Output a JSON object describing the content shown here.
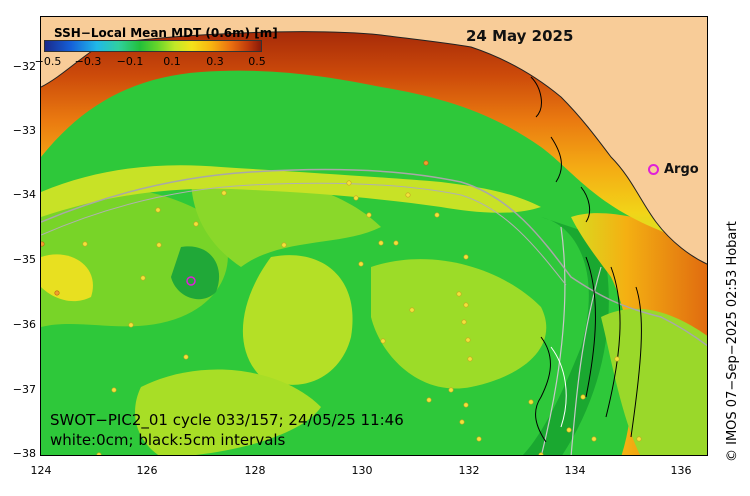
{
  "colorbar": {
    "title": "SSH−Local Mean MDT (0.6m) [m]",
    "ticks": [
      "−0.5",
      "−0.3",
      "−0.1",
      "0.1",
      "0.3",
      "0.5"
    ]
  },
  "map": {
    "date": "24 May 2025",
    "lat_labels": [
      "−32",
      "−33",
      "−34",
      "−35",
      "−36",
      "−37",
      "−38"
    ],
    "lon_labels": [
      "124",
      "126",
      "128",
      "130",
      "132",
      "134",
      "136"
    ],
    "argo_label": "Argo",
    "info_line1": "SWOT−PIC2_01 cycle 033/157; 24/05/25 11:46",
    "info_line2": "white:0cm; black:5cm intervals",
    "credit": "© IMOS 07−Sep−2025 02:53 Hobart"
  },
  "colors": {
    "land": "#f8cc98",
    "ocean_green": "#2ec83a",
    "argo": "#e020d8"
  }
}
